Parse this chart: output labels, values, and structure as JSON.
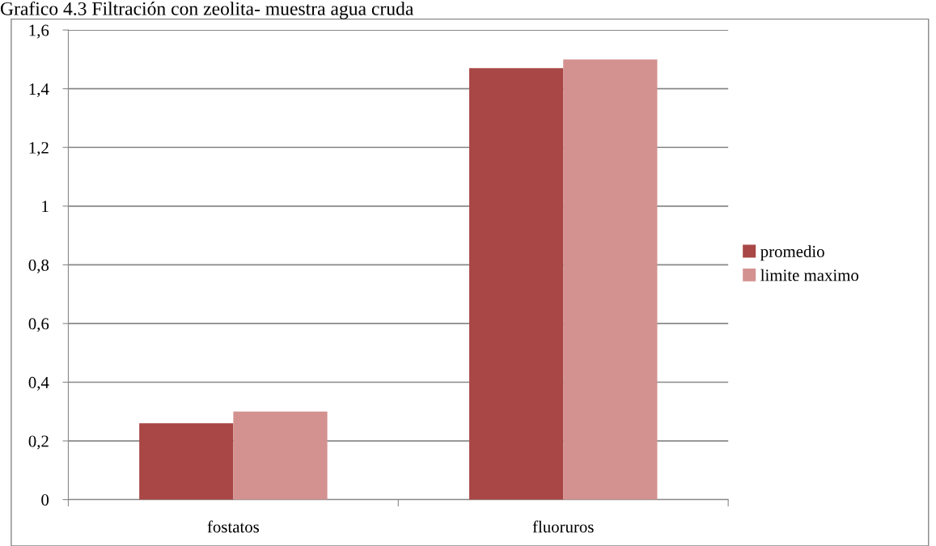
{
  "chart_data": {
    "type": "bar",
    "title": "Grafico 4.3 Filtración con zeolita- muestra agua cruda",
    "categories": [
      "fostatos",
      "fluoruros"
    ],
    "series": [
      {
        "name": "promedio",
        "color": "#a84745",
        "values": [
          0.26,
          1.47
        ]
      },
      {
        "name": "limite maximo",
        "color": "#d39290",
        "values": [
          0.3,
          1.5
        ]
      }
    ],
    "ylim": [
      0,
      1.6
    ],
    "yticks": [
      0,
      {
        "value": 0.2,
        "label": "0,2"
      },
      {
        "value": 0.4,
        "label": "0,4"
      },
      {
        "value": 0.6,
        "label": "0,6"
      },
      {
        "value": 0.8,
        "label": "0,8"
      },
      1,
      {
        "value": 1.2,
        "label": "1,2"
      },
      {
        "value": 1.4,
        "label": "1,4"
      },
      {
        "value": 1.6,
        "label": "1,6"
      }
    ],
    "grid": "y",
    "legend": "right"
  }
}
